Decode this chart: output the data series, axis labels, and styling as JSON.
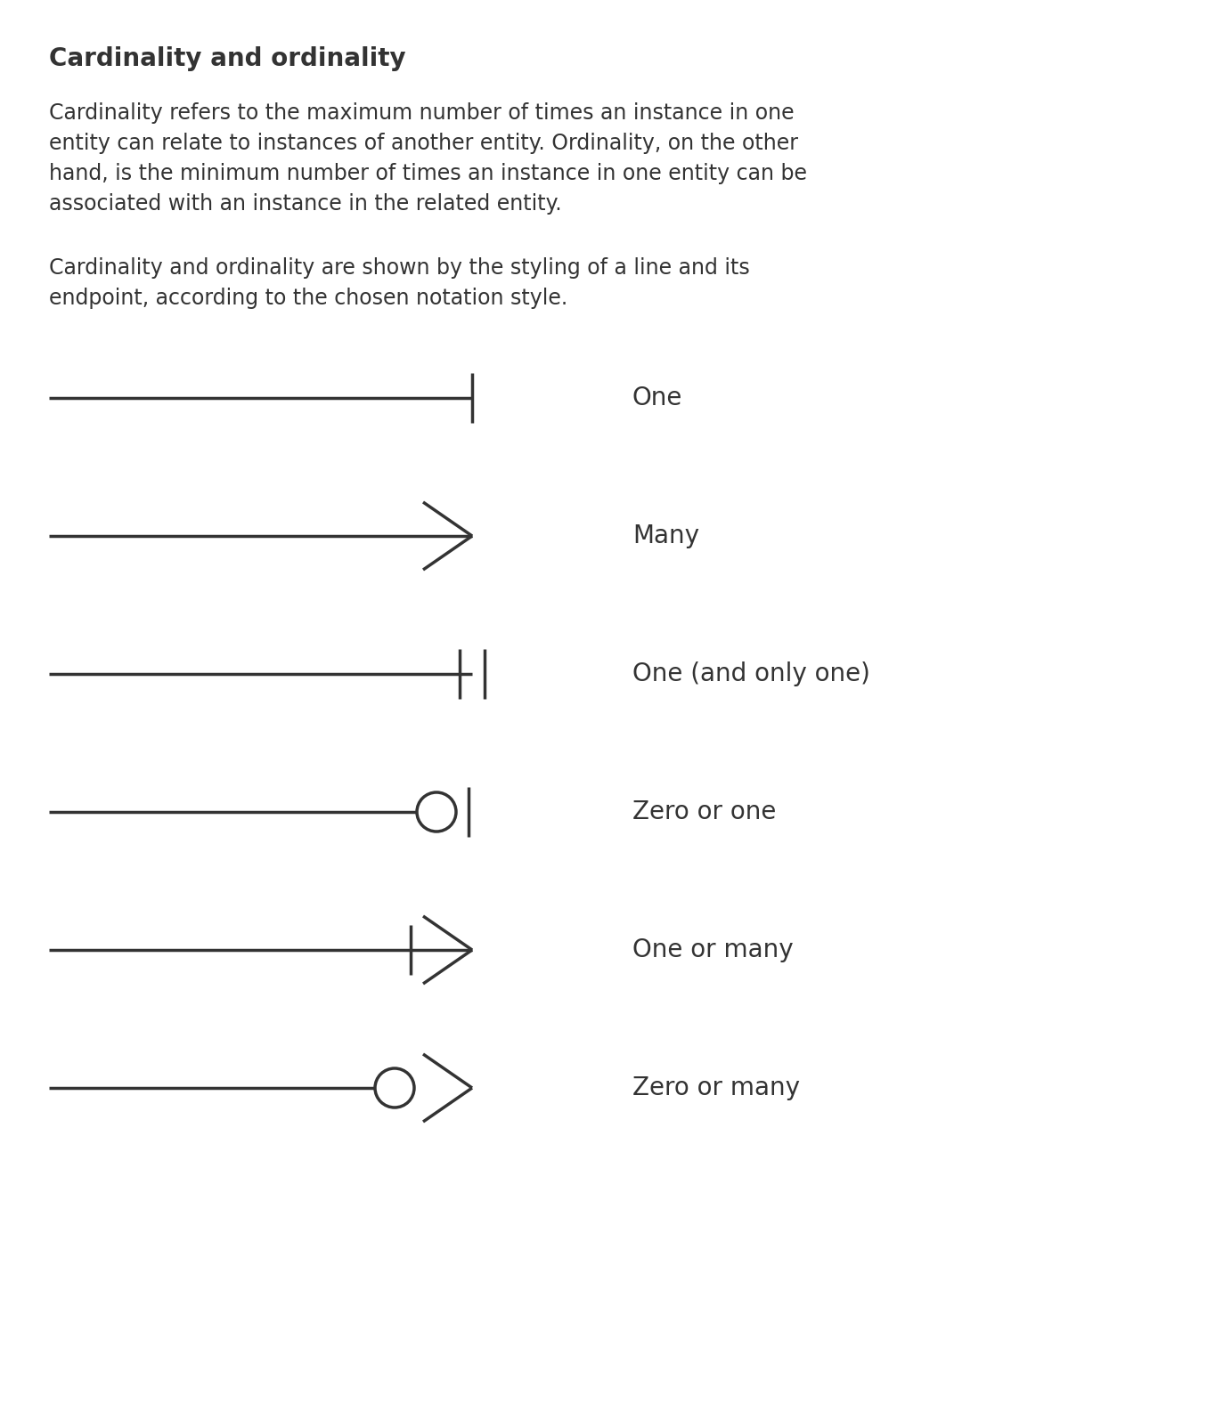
{
  "title": "Cardinality and ordinality",
  "paragraph1_lines": [
    "Cardinality refers to the maximum number of times an instance in one",
    "entity can relate to instances of another entity. Ordinality, on the other",
    "hand, is the minimum number of times an instance in one entity can be",
    "associated with an instance in the related entity."
  ],
  "paragraph2_lines": [
    "Cardinality and ordinality are shown by the styling of a line and its",
    "endpoint, according to the chosen notation style."
  ],
  "background_color": "#ffffff",
  "text_color": "#333333",
  "line_color": "#333333",
  "symbols": [
    {
      "label": "One"
    },
    {
      "label": "Many"
    },
    {
      "label": "One (and only one)"
    },
    {
      "label": "Zero or one"
    },
    {
      "label": "One or many"
    },
    {
      "label": "Zero or many"
    }
  ],
  "title_fontsize": 20,
  "body_fontsize": 17,
  "label_fontsize": 20,
  "line_lw": 2.5
}
